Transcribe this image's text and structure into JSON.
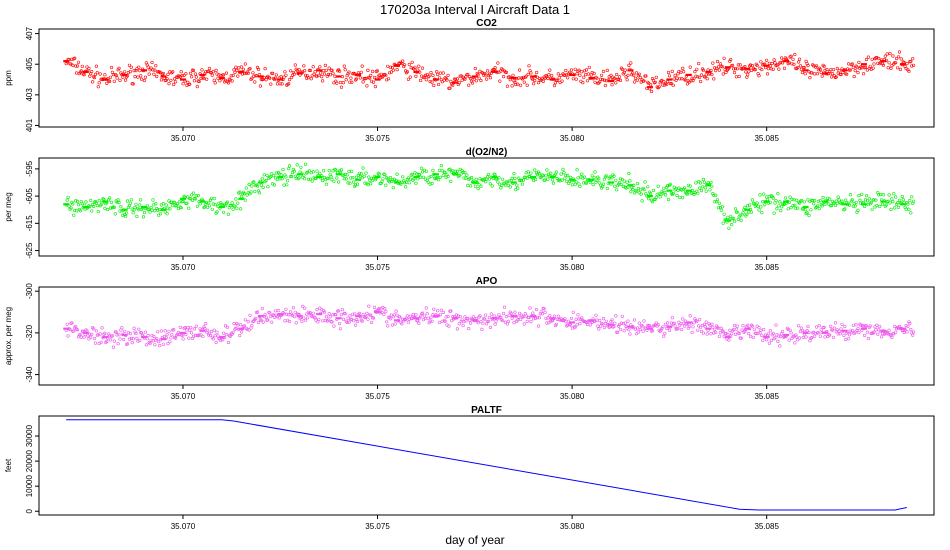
{
  "figure": {
    "title": "170203a   Interval I Aircraft Data 1",
    "xlabel": "day of year"
  },
  "chart_data": [
    {
      "type": "scatter",
      "title": "CO2",
      "ylabel": "ppm",
      "xlim": [
        35.0663,
        35.0893
      ],
      "ylim": [
        400.9,
        407.3
      ],
      "xticks": [
        35.07,
        35.075,
        35.08,
        35.085
      ],
      "xtick_labels": [
        "35.070",
        "35.075",
        "35.080",
        "35.085"
      ],
      "yticks": [
        401,
        403,
        405,
        407
      ],
      "ytick_labels": [
        "401",
        "403",
        "405",
        "407"
      ],
      "color": "#ff0000",
      "x": [
        35.067,
        35.0675,
        35.068,
        35.0685,
        35.069,
        35.0695,
        35.07,
        35.0705,
        35.071,
        35.0715,
        35.072,
        35.0725,
        35.073,
        35.0735,
        35.074,
        35.0745,
        35.075,
        35.0755,
        35.076,
        35.0765,
        35.077,
        35.0775,
        35.078,
        35.0785,
        35.079,
        35.0795,
        35.08,
        35.0805,
        35.081,
        35.0815,
        35.082,
        35.0825,
        35.083,
        35.0835,
        35.084,
        35.0845,
        35.085,
        35.0855,
        35.086,
        35.0865,
        35.087,
        35.0875,
        35.088,
        35.0885
      ],
      "y": [
        405.2,
        404.5,
        404.0,
        404.3,
        404.6,
        404.2,
        404.0,
        404.3,
        404.1,
        404.5,
        404.2,
        404.0,
        404.4,
        404.6,
        404.2,
        404.3,
        404.0,
        404.9,
        404.5,
        404.0,
        403.8,
        404.2,
        404.5,
        404.1,
        404.2,
        404.0,
        404.3,
        404.1,
        403.9,
        404.6,
        403.5,
        404.0,
        404.3,
        404.5,
        404.8,
        404.7,
        404.9,
        405.2,
        404.6,
        404.4,
        404.6,
        405.0,
        405.2,
        405.0
      ]
    },
    {
      "type": "scatter",
      "title": "d(O2/N2)",
      "ylabel": "per meg",
      "xlim": [
        35.0663,
        35.0893
      ],
      "ylim": [
        -627,
        -591
      ],
      "xticks": [
        35.07,
        35.075,
        35.08,
        35.085
      ],
      "xtick_labels": [
        "35.070",
        "35.075",
        "35.080",
        "35.085"
      ],
      "yticks": [
        -625,
        -615,
        -605,
        -595
      ],
      "ytick_labels": [
        "-625",
        "-615",
        "-605",
        "-595"
      ],
      "color": "#00ee00",
      "x": [
        35.067,
        35.0675,
        35.068,
        35.0685,
        35.069,
        35.0695,
        35.07,
        35.0705,
        35.071,
        35.0715,
        35.072,
        35.0725,
        35.073,
        35.0735,
        35.074,
        35.0745,
        35.075,
        35.0755,
        35.076,
        35.0765,
        35.077,
        35.0775,
        35.078,
        35.0785,
        35.079,
        35.0795,
        35.08,
        35.0805,
        35.081,
        35.0815,
        35.082,
        35.0825,
        35.083,
        35.0835,
        35.084,
        35.0845,
        35.085,
        35.0855,
        35.086,
        35.0865,
        35.087,
        35.0875,
        35.088,
        35.0885
      ],
      "y": [
        -608,
        -609,
        -607,
        -610,
        -609,
        -610,
        -606,
        -607,
        -609,
        -606,
        -600,
        -598,
        -597,
        -598,
        -597,
        -599,
        -598,
        -600,
        -598,
        -597,
        -597,
        -600,
        -598,
        -600,
        -598,
        -598,
        -599,
        -599,
        -600,
        -601,
        -605,
        -603,
        -603,
        -601,
        -614,
        -610,
        -607,
        -607,
        -609,
        -607,
        -608,
        -608,
        -607,
        -608
      ]
    },
    {
      "type": "scatter",
      "title": "APO",
      "ylabel": "approx. per meg",
      "xlim": [
        35.0663,
        35.0893
      ],
      "ylim": [
        -345,
        -298
      ],
      "xticks": [
        35.07,
        35.075,
        35.08,
        35.085
      ],
      "xtick_labels": [
        "35.070",
        "35.075",
        "35.080",
        "35.085"
      ],
      "yticks": [
        -340,
        -320,
        -300
      ],
      "ytick_labels": [
        "-340",
        "-320",
        "-300"
      ],
      "color": "#ee55ee",
      "x": [
        35.067,
        35.0675,
        35.068,
        35.0685,
        35.069,
        35.0695,
        35.07,
        35.0705,
        35.071,
        35.0715,
        35.072,
        35.0725,
        35.073,
        35.0735,
        35.074,
        35.0745,
        35.075,
        35.0755,
        35.076,
        35.0765,
        35.077,
        35.0775,
        35.078,
        35.0785,
        35.079,
        35.0795,
        35.08,
        35.0805,
        35.081,
        35.0815,
        35.082,
        35.0825,
        35.083,
        35.0835,
        35.084,
        35.0845,
        35.085,
        35.0855,
        35.086,
        35.0865,
        35.087,
        35.0875,
        35.088,
        35.0885
      ],
      "y": [
        -318,
        -320,
        -322,
        -321,
        -322,
        -323,
        -320,
        -319,
        -322,
        -318,
        -312,
        -311,
        -312,
        -311,
        -313,
        -312,
        -310,
        -314,
        -313,
        -312,
        -313,
        -314,
        -313,
        -312,
        -312,
        -313,
        -315,
        -314,
        -316,
        -317,
        -318,
        -317,
        -315,
        -318,
        -322,
        -318,
        -322,
        -321,
        -320,
        -320,
        -319,
        -318,
        -319,
        -318
      ]
    },
    {
      "type": "line",
      "title": "PALTF",
      "ylabel": "feet",
      "xlim": [
        35.0663,
        35.0893
      ],
      "ylim": [
        -1500,
        38000
      ],
      "xticks": [
        35.07,
        35.075,
        35.08,
        35.085
      ],
      "xtick_labels": [
        "35.070",
        "35.075",
        "35.080",
        "35.085"
      ],
      "yticks": [
        0,
        10000,
        20000,
        30000
      ],
      "ytick_labels": [
        "0",
        "10000",
        "20000",
        "30000"
      ],
      "color": "#0000ff",
      "x": [
        35.067,
        35.071,
        35.0713,
        35.0843,
        35.0848,
        35.087,
        35.0875,
        35.0883,
        35.0886
      ],
      "y": [
        36500,
        36500,
        36000,
        800,
        500,
        500,
        500,
        500,
        1500
      ]
    }
  ]
}
